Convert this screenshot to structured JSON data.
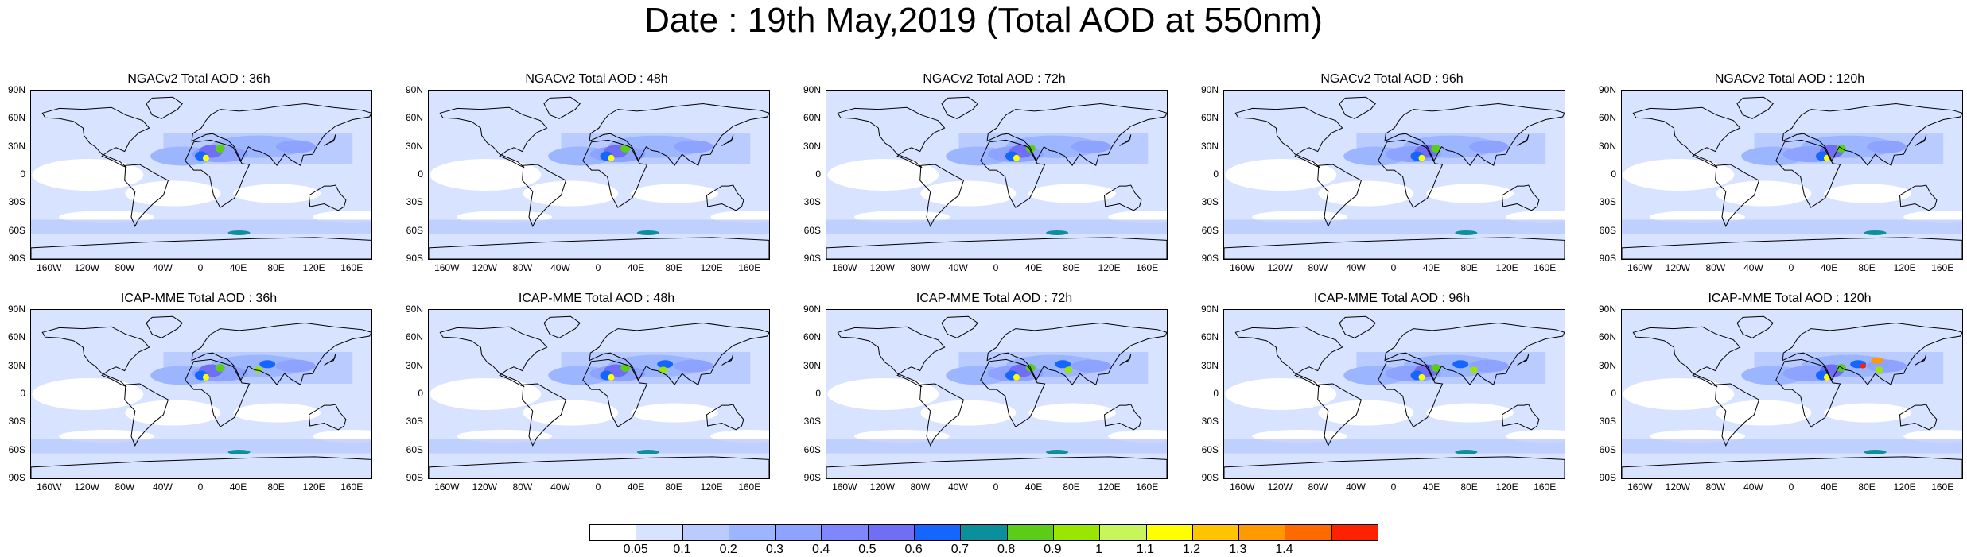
{
  "title": "Date : 19th May,2019 (Total AOD at 550nm)",
  "panels": [
    {
      "title": "NGACv2 Total AOD : 36h"
    },
    {
      "title": "NGACv2 Total AOD : 48h"
    },
    {
      "title": "NGACv2 Total AOD : 72h"
    },
    {
      "title": "NGACv2 Total AOD : 96h"
    },
    {
      "title": "NGACv2 Total AOD : 120h"
    },
    {
      "title": "ICAP-MME Total AOD : 36h"
    },
    {
      "title": "ICAP-MME Total AOD : 48h"
    },
    {
      "title": "ICAP-MME Total AOD : 72h"
    },
    {
      "title": "ICAP-MME Total AOD : 96h"
    },
    {
      "title": "ICAP-MME Total AOD : 120h"
    }
  ],
  "axes": {
    "lat_labels": [
      "90N",
      "60N",
      "30N",
      "0",
      "30S",
      "60S",
      "90S"
    ],
    "lon_labels": [
      "160W",
      "120W",
      "80W",
      "40W",
      "0",
      "40E",
      "80E",
      "120E",
      "160E"
    ]
  },
  "colorbar": {
    "labels": [
      "0.05",
      "0.1",
      "0.2",
      "0.3",
      "0.4",
      "0.5",
      "0.6",
      "0.7",
      "0.8",
      "0.9",
      "1",
      "1.1",
      "1.2",
      "1.3",
      "1.4"
    ],
    "colors": [
      "#ffffff",
      "#d8e3ff",
      "#b9cbff",
      "#9cb5ff",
      "#8da3ff",
      "#7f87ff",
      "#6f6ef5",
      "#1565ff",
      "#0b8f9a",
      "#5bcc1a",
      "#99e600",
      "#c9f55c",
      "#ffff00",
      "#ffc400",
      "#ff9900",
      "#ff6a00",
      "#ff2200"
    ]
  }
}
